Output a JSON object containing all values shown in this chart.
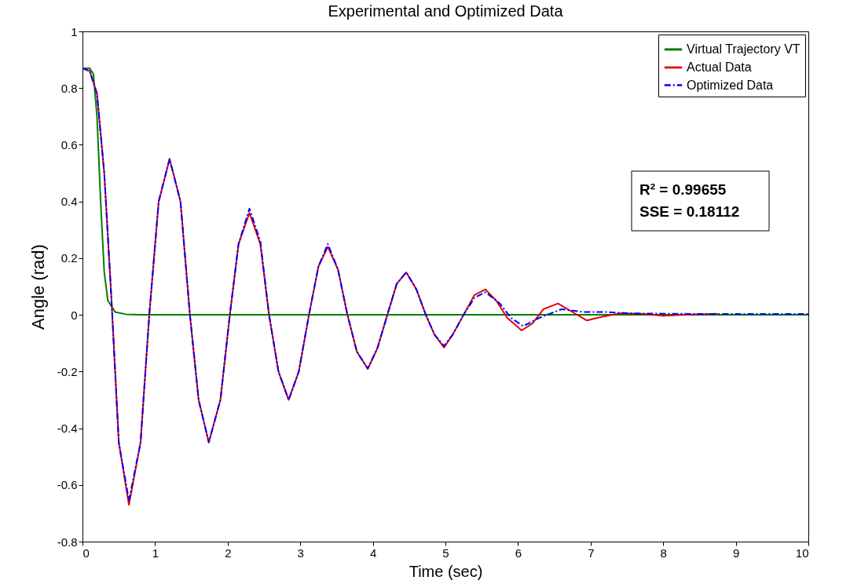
{
  "chart_data": {
    "type": "line",
    "title": "Experimental and Optimized Data",
    "xlabel": "Time (sec)",
    "ylabel": "Angle (rad)",
    "xlim": [
      0,
      10
    ],
    "xticks": [
      0,
      1,
      2,
      3,
      4,
      5,
      6,
      7,
      8,
      9,
      10
    ],
    "ylim": [
      -0.8,
      1
    ],
    "yticks": [
      -0.8,
      -0.6,
      -0.4,
      -0.2,
      0,
      0.2,
      0.4,
      0.6,
      0.8,
      1
    ],
    "grid": false,
    "legend": "top right",
    "marker": "none",
    "annotations": [
      "R² = 0.99655",
      "SSE = 0.18112"
    ],
    "series": [
      {
        "name": "Virtual Trajectory VT",
        "color": "#007f00",
        "line_style": "solid",
        "x": [
          0,
          0.1,
          0.15,
          0.2,
          0.25,
          0.3,
          0.35,
          0.45,
          0.6,
          0.8,
          10
        ],
        "values": [
          0.87,
          0.87,
          0.85,
          0.7,
          0.4,
          0.15,
          0.05,
          0.01,
          0.002,
          0,
          0
        ]
      },
      {
        "name": "Actual Data",
        "color": "#e00000",
        "line_style": "solid",
        "x": [
          0,
          0.1,
          0.2,
          0.3,
          0.4,
          0.5,
          0.64,
          0.8,
          0.92,
          1.05,
          1.2,
          1.35,
          1.48,
          1.6,
          1.74,
          1.9,
          2.03,
          2.15,
          2.3,
          2.45,
          2.57,
          2.7,
          2.84,
          2.98,
          3.12,
          3.25,
          3.38,
          3.52,
          3.65,
          3.78,
          3.93,
          4.06,
          4.2,
          4.33,
          4.46,
          4.6,
          4.73,
          4.85,
          4.98,
          5.1,
          5.25,
          5.4,
          5.55,
          5.7,
          5.85,
          6.05,
          6.2,
          6.35,
          6.55,
          6.75,
          6.95,
          7.1,
          7.4,
          7.7,
          8,
          8.3,
          8.75
        ],
        "values": [
          0.87,
          0.86,
          0.78,
          0.5,
          0.05,
          -0.45,
          -0.67,
          -0.45,
          0,
          0.4,
          0.55,
          0.4,
          0,
          -0.3,
          -0.45,
          -0.3,
          0,
          0.25,
          0.36,
          0.25,
          0,
          -0.2,
          -0.3,
          -0.2,
          0,
          0.17,
          0.24,
          0.16,
          0,
          -0.13,
          -0.19,
          -0.12,
          0,
          0.11,
          0.15,
          0.09,
          0,
          -0.07,
          -0.115,
          -0.07,
          0,
          0.07,
          0.09,
          0.05,
          -0.01,
          -0.055,
          -0.03,
          0.02,
          0.04,
          0.01,
          -0.02,
          -0.01,
          0.005,
          0.004,
          -0.003,
          0,
          0.004
        ]
      },
      {
        "name": "Optimized Data",
        "color": "#0000ff",
        "line_style": "dashdot",
        "x": [
          0,
          0.1,
          0.2,
          0.3,
          0.4,
          0.5,
          0.64,
          0.8,
          0.92,
          1.05,
          1.2,
          1.35,
          1.48,
          1.6,
          1.74,
          1.9,
          2.03,
          2.15,
          2.3,
          2.45,
          2.57,
          2.7,
          2.84,
          2.98,
          3.12,
          3.25,
          3.38,
          3.52,
          3.65,
          3.78,
          3.93,
          4.06,
          4.2,
          4.33,
          4.46,
          4.6,
          4.73,
          4.85,
          4.98,
          5.1,
          5.25,
          5.4,
          5.55,
          5.75,
          5.9,
          6.07,
          6.3,
          6.6,
          6.9,
          7.2,
          7.6,
          8.5,
          10
        ],
        "values": [
          0.87,
          0.86,
          0.78,
          0.5,
          0.05,
          -0.45,
          -0.655,
          -0.45,
          0,
          0.4,
          0.55,
          0.4,
          0,
          -0.3,
          -0.45,
          -0.3,
          0,
          0.25,
          0.375,
          0.26,
          0,
          -0.2,
          -0.3,
          -0.2,
          0,
          0.17,
          0.25,
          0.16,
          0,
          -0.13,
          -0.19,
          -0.12,
          0,
          0.11,
          0.15,
          0.09,
          0,
          -0.07,
          -0.11,
          -0.07,
          0,
          0.06,
          0.08,
          0.04,
          -0.01,
          -0.04,
          -0.01,
          0.02,
          0.01,
          0.01,
          0.005,
          0.003,
          0.003
        ]
      }
    ]
  }
}
